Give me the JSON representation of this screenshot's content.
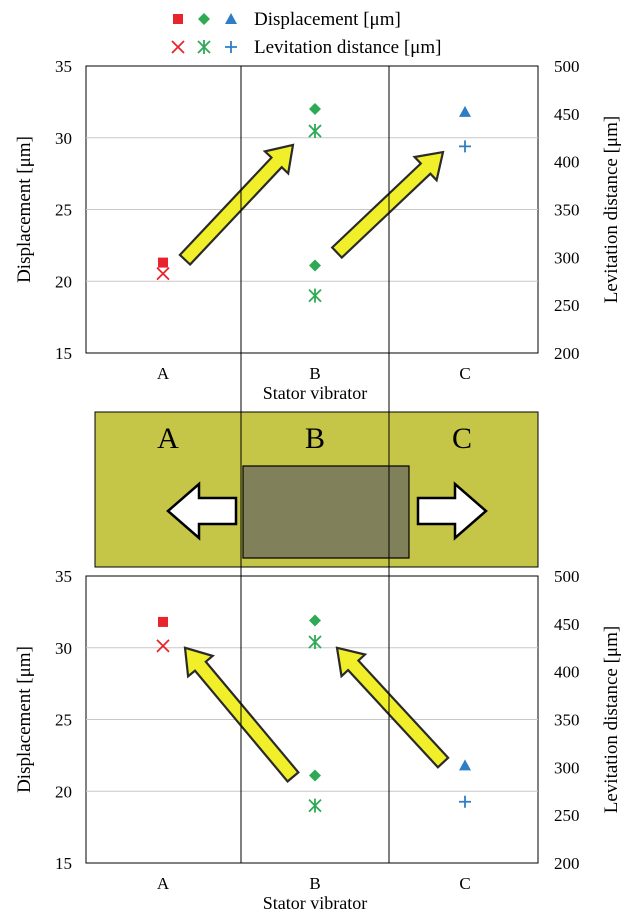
{
  "legend": {
    "row1_label": "Displacement [μm]",
    "row2_label": "Levitation distance [μm]",
    "row1_markers": [
      "square",
      "diamond",
      "triangle"
    ],
    "row2_markers": [
      "x",
      "asterisk",
      "plus"
    ]
  },
  "colors": {
    "A": "#e8242c",
    "B": "#2eaa55",
    "C": "#2e7dc5",
    "arrow_fill": "#f1ef2a",
    "arrow_stroke": "#2a2a2a",
    "stator_bg": "#c5c547",
    "slider": "#80805a",
    "gridline": "#c8c8c8"
  },
  "stator_labels": [
    "A",
    "B",
    "C"
  ],
  "chart_data": [
    {
      "type": "scatter",
      "categories": [
        "A",
        "B",
        "C"
      ],
      "xlabel": "Stator vibrator",
      "ylabel": "Displacement [μm]",
      "y2label": "Levitation distance [μm]",
      "ylim": [
        15,
        35
      ],
      "y2lim": [
        200,
        500
      ],
      "yticks": [
        15,
        20,
        25,
        30,
        35
      ],
      "y2ticks": [
        200,
        250,
        300,
        350,
        400,
        450,
        500
      ],
      "grid": true,
      "series": [
        {
          "name": "Displacement [μm]",
          "axis": "left",
          "points": [
            {
              "x": "A",
              "y": 21.3,
              "marker": "square"
            },
            {
              "x": "B",
              "y": 32.0,
              "marker": "diamond"
            },
            {
              "x": "B",
              "y": 21.1,
              "marker": "diamond"
            },
            {
              "x": "C",
              "y": 31.8,
              "marker": "triangle"
            }
          ]
        },
        {
          "name": "Levitation distance [μm]",
          "axis": "right",
          "points": [
            {
              "x": "A",
              "y": 283,
              "marker": "x"
            },
            {
              "x": "B",
              "y": 432,
              "marker": "asterisk"
            },
            {
              "x": "B",
              "y": 260,
              "marker": "asterisk"
            },
            {
              "x": "C",
              "y": 416,
              "marker": "plus"
            }
          ]
        }
      ],
      "arrows": [
        {
          "from": [
            "A",
            21.5
          ],
          "to": [
            "B",
            29.5
          ]
        },
        {
          "from": [
            "B",
            22
          ],
          "to": [
            "C",
            29
          ]
        }
      ]
    },
    {
      "type": "scatter",
      "categories": [
        "A",
        "B",
        "C"
      ],
      "xlabel": "Stator vibrator",
      "ylabel": "Displacement [μm]",
      "y2label": "Levitation distance [μm]",
      "ylim": [
        15,
        35
      ],
      "y2lim": [
        200,
        500
      ],
      "yticks": [
        15,
        20,
        25,
        30,
        35
      ],
      "y2ticks": [
        200,
        250,
        300,
        350,
        400,
        450,
        500
      ],
      "grid": true,
      "series": [
        {
          "name": "Displacement [μm]",
          "axis": "left",
          "points": [
            {
              "x": "A",
              "y": 31.8,
              "marker": "square"
            },
            {
              "x": "B",
              "y": 31.9,
              "marker": "diamond"
            },
            {
              "x": "B",
              "y": 21.1,
              "marker": "diamond"
            },
            {
              "x": "C",
              "y": 21.8,
              "marker": "triangle"
            }
          ]
        },
        {
          "name": "Levitation distance [μm]",
          "axis": "right",
          "points": [
            {
              "x": "A",
              "y": 427,
              "marker": "x"
            },
            {
              "x": "B",
              "y": 431,
              "marker": "asterisk"
            },
            {
              "x": "B",
              "y": 260,
              "marker": "asterisk"
            },
            {
              "x": "C",
              "y": 264,
              "marker": "plus"
            }
          ]
        }
      ],
      "arrows": [
        {
          "from": [
            "B",
            21
          ],
          "to": [
            "A",
            30
          ]
        },
        {
          "from": [
            "C",
            22
          ],
          "to": [
            "B",
            30
          ]
        }
      ]
    }
  ]
}
